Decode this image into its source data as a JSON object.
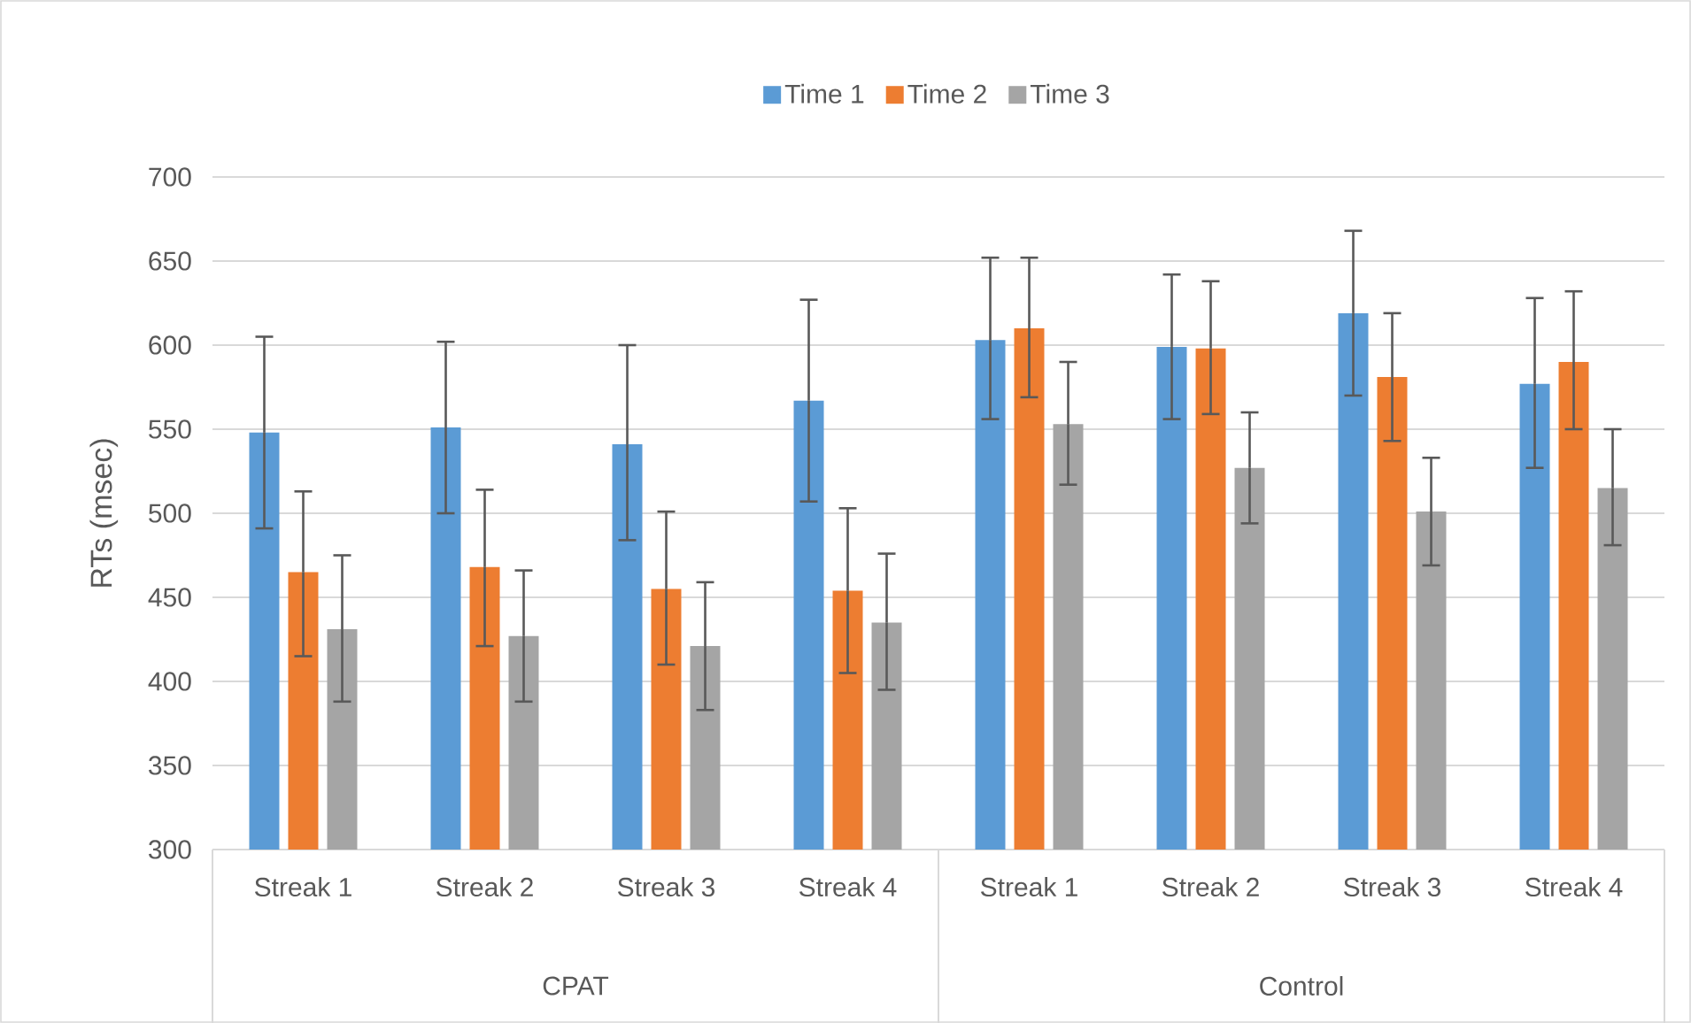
{
  "chart_data": {
    "type": "bar",
    "ylabel": "RTs (msec)",
    "categories": [
      "Streak 1",
      "Streak 2",
      "Streak 3",
      "Streak 4",
      "Streak 1",
      "Streak 2",
      "Streak 3",
      "Streak 4"
    ],
    "annotations": [
      "CPAT",
      "Control"
    ],
    "series": [
      {
        "name": "Time 1",
        "color": "#5b9bd5",
        "values": [
          548,
          551,
          541,
          567,
          603,
          599,
          619,
          577
        ],
        "errors": [
          [
            491,
            605
          ],
          [
            500,
            602
          ],
          [
            484,
            600
          ],
          [
            507,
            627
          ],
          [
            556,
            652
          ],
          [
            556,
            642
          ],
          [
            570,
            668
          ],
          [
            527,
            628
          ]
        ]
      },
      {
        "name": "Time 2",
        "color": "#ed7d31",
        "values": [
          465,
          468,
          455,
          454,
          610,
          598,
          581,
          590
        ],
        "errors": [
          [
            415,
            513
          ],
          [
            421,
            514
          ],
          [
            410,
            501
          ],
          [
            405,
            503
          ],
          [
            569,
            652
          ],
          [
            559,
            638
          ],
          [
            543,
            619
          ],
          [
            550,
            632
          ]
        ]
      },
      {
        "name": "Time 3",
        "color": "#a5a5a5",
        "values": [
          431,
          427,
          421,
          435,
          553,
          527,
          501,
          515
        ],
        "errors": [
          [
            388,
            475
          ],
          [
            388,
            466
          ],
          [
            383,
            459
          ],
          [
            395,
            476
          ],
          [
            517,
            590
          ],
          [
            494,
            560
          ],
          [
            469,
            533
          ],
          [
            481,
            550
          ]
        ]
      }
    ],
    "ylim": [
      300,
      700
    ],
    "yticks": [
      300,
      350,
      400,
      450,
      500,
      550,
      600,
      650,
      700
    ],
    "grid": "y",
    "legend": "top"
  }
}
